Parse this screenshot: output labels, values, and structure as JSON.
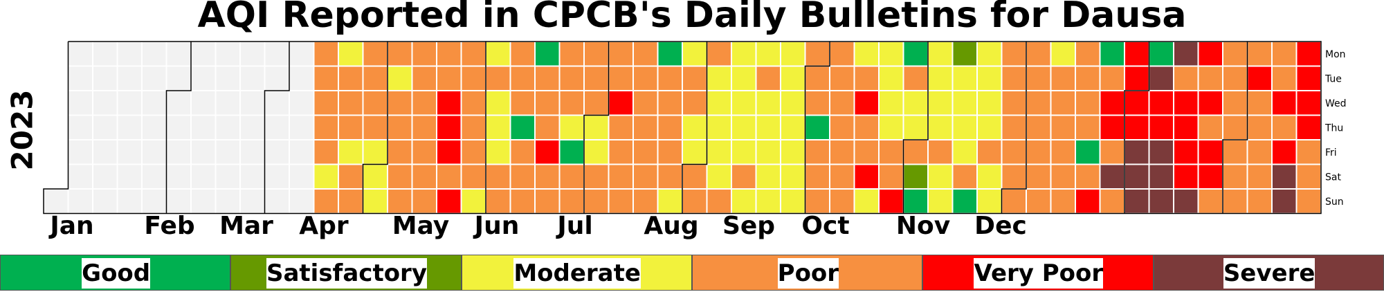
{
  "chart_data": {
    "type": "heatmap",
    "title": "AQI Reported in CPCB's Daily Bulletins for Dausa",
    "year": "2023",
    "months": [
      "Jan",
      "Feb",
      "Mar",
      "Apr",
      "May",
      "Jun",
      "Jul",
      "Aug",
      "Sep",
      "Oct",
      "Nov",
      "Dec"
    ],
    "weekdays": [
      "Mon",
      "Tue",
      "Wed",
      "Thu",
      "Fri",
      "Sat",
      "Sun"
    ],
    "categories": [
      "Good",
      "Satisfactory",
      "Moderate",
      "Poor",
      "Very Poor",
      "Severe"
    ],
    "colors": {
      "N": "#f2f2f2",
      "G": "#00b050",
      "S": "#669900",
      "M": "#f2f23c",
      "P": "#f79040",
      "V": "#ff0000",
      "X": "#7b3a3a"
    },
    "first_weekday_of_year": "Sun",
    "week_columns": [
      "......N",
      "NNNNNNN",
      "NNNNNNN",
      "NNNNNNN",
      "NNNNNNN",
      "NNNNNNN",
      "NNNNNNN",
      "NNNNNNN",
      "NNNNNNN",
      "NNNNNNN",
      "NNNNNNN",
      "PPPPPMP",
      "MPPPMPP",
      "PPPPMMM",
      "PMPPPPP",
      "PPPPPPP",
      "PPVVVPV",
      "PPPPPPM",
      "MPMMMPP",
      "PPPGPPP",
      "GPPPVPP",
      "PPPMGPP",
      "PPPMMPP",
      "PPVPPPP",
      "PPPPPPP",
      "GPPPPPM",
      "MPPMMPP",
      "PMMMMMP",
      "MMMMMPM",
      "MPMMMMM",
      "MMMMMMM",
      "PPPGPPP",
      "PPPPPPP",
      "MPVPPVM",
      "MMMMPPV",
      "GPMMPSG",
      "MMMMPMM",
      "SMMMMPG",
      "MMMMPMM",
      "PPPPPPP",
      "PPPPPPP",
      "MPPPPPP",
      "PPPPGPV",
      "GPVVPXP",
      "VVVVXXX",
      "GXVVXXX",
      "XPVVVVX",
      "VPVPVVP",
      "PPPPPPP",
      "PVPPPPP",
      "PPVPVXX",
      "VVVVPPP"
    ],
    "month_label_centers": [
      104,
      245,
      356,
      468,
      608,
      718,
      831,
      970,
      1082,
      1193,
      1334,
      1446
    ]
  }
}
